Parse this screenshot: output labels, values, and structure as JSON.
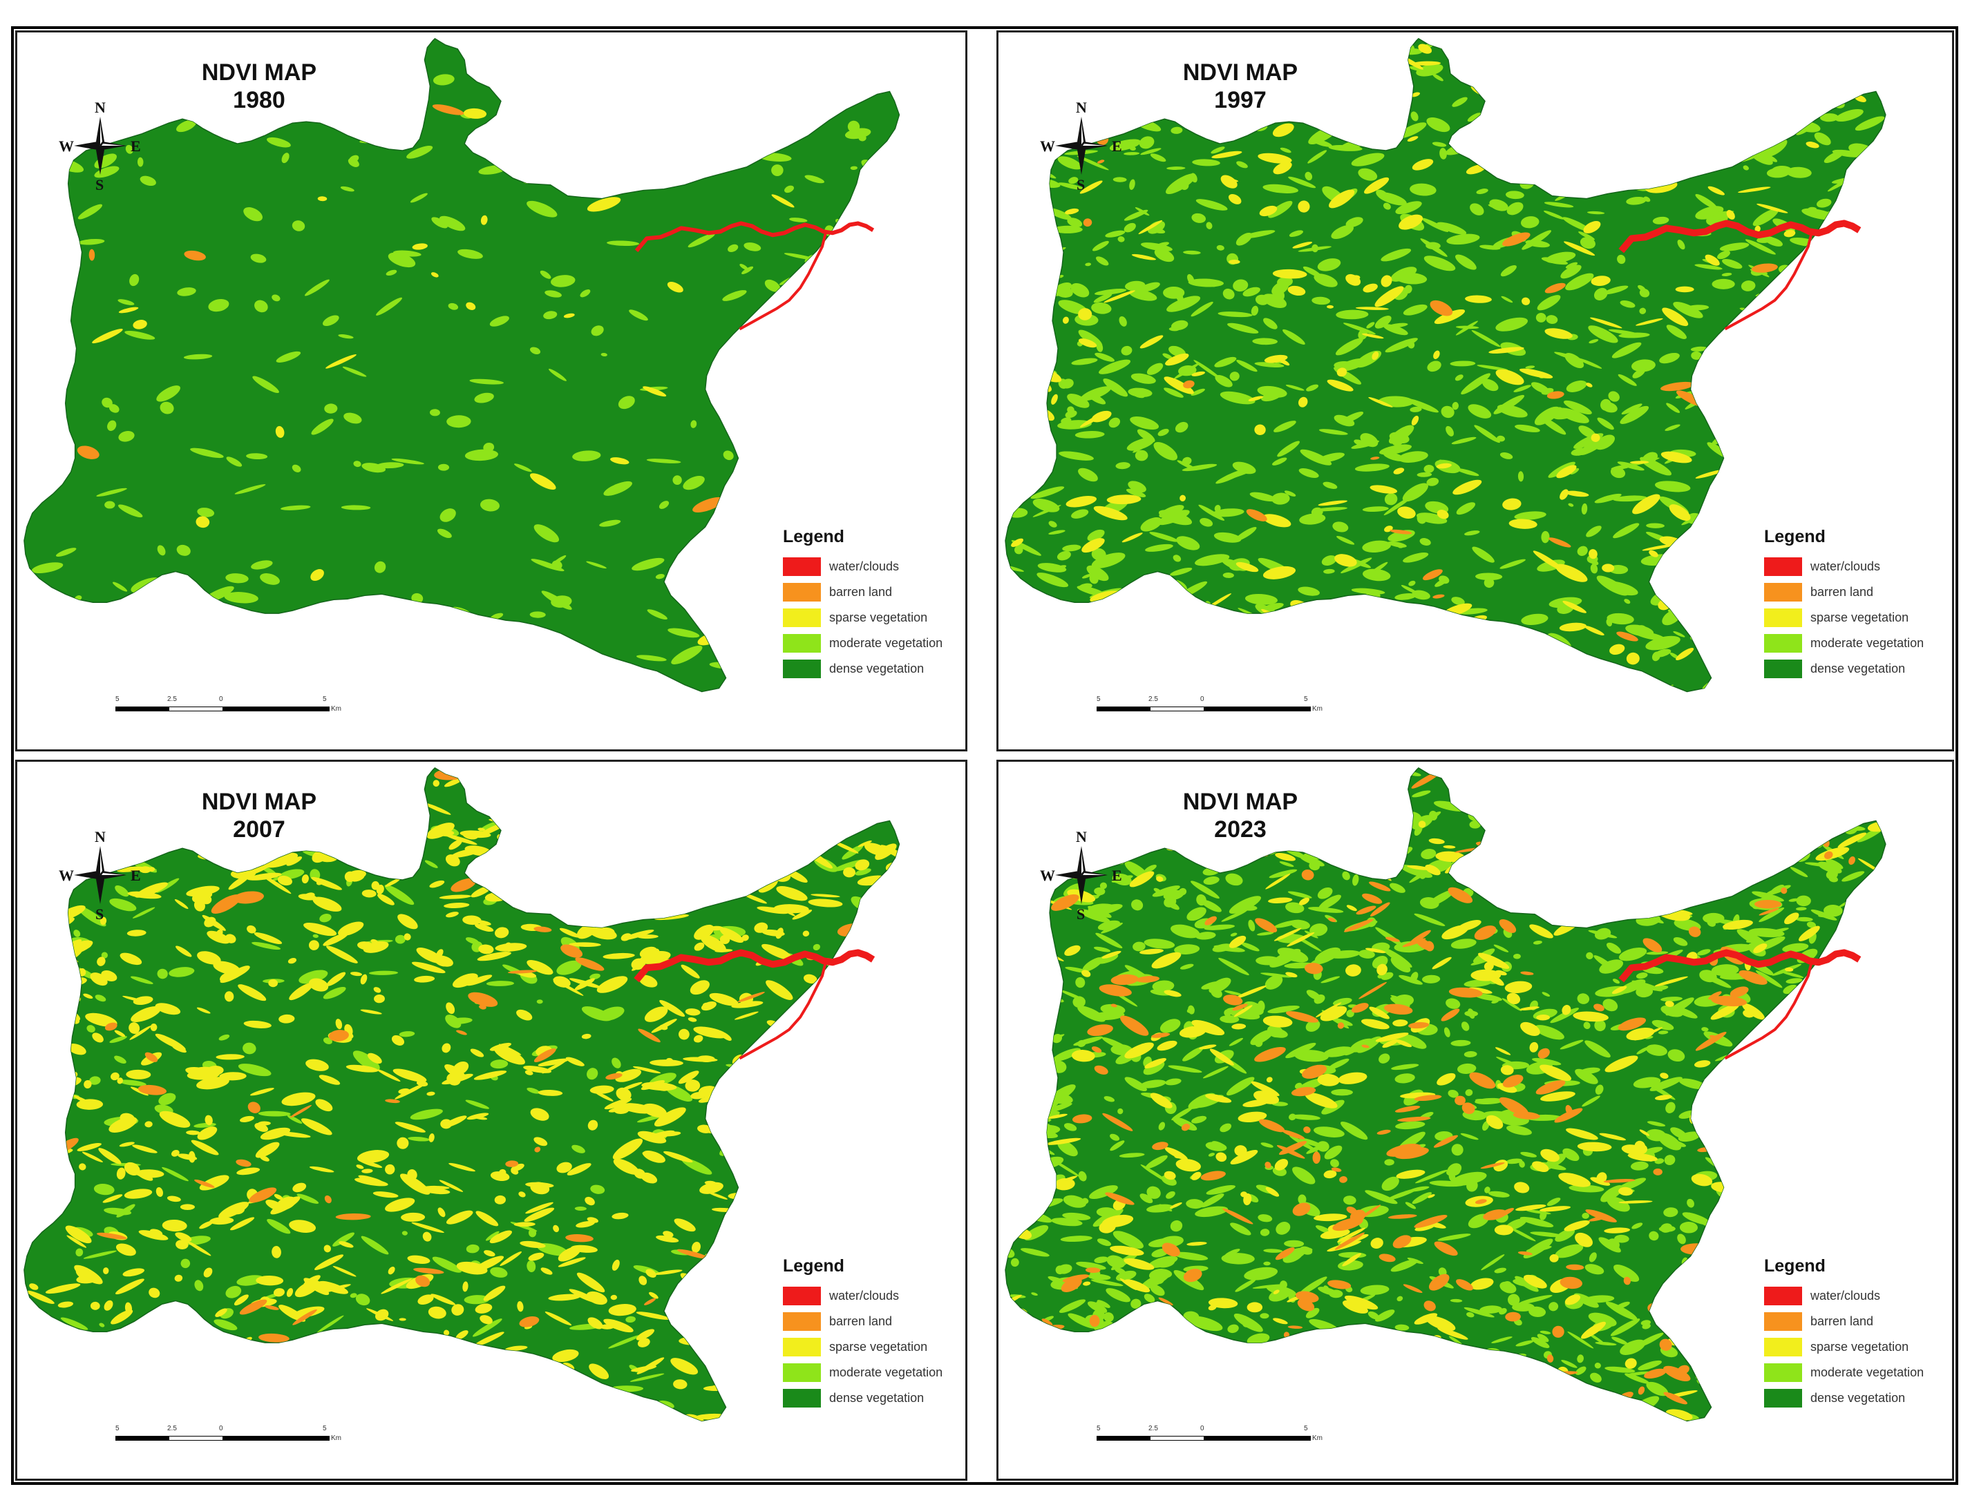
{
  "colors": {
    "water_clouds": "#ee1b1b",
    "barren_land": "#f7921e",
    "sparse_vegetation": "#f2ee1c",
    "moderate_vegetation": "#8fe41a",
    "dense_vegetation": "#1a8a1a",
    "ridge_light": "#44b81a"
  },
  "compass": {
    "north": "N",
    "south": "S",
    "east": "E",
    "west": "W"
  },
  "legend": {
    "title": "Legend",
    "items": [
      {
        "label": "water/clouds",
        "color_key": "water_clouds"
      },
      {
        "label": "barren land",
        "color_key": "barren_land"
      },
      {
        "label": "sparse vegetation",
        "color_key": "sparse_vegetation"
      },
      {
        "label": "moderate vegetation",
        "color_key": "moderate_vegetation"
      },
      {
        "label": "dense vegetation",
        "color_key": "dense_vegetation"
      }
    ]
  },
  "scale": {
    "ticks": [
      "5",
      "2.5",
      "0",
      "5"
    ],
    "unit": "Km"
  },
  "maps": [
    {
      "title_line1": "NDVI MAP",
      "year": "1980",
      "shares": {
        "water_clouds": 0.005,
        "barren_land": 0.003,
        "sparse_vegetation": 0.01,
        "moderate_vegetation": 0.08,
        "dense_vegetation": 0.902
      }
    },
    {
      "title_line1": "NDVI MAP",
      "year": "1997",
      "shares": {
        "water_clouds": 0.005,
        "barren_land": 0.01,
        "sparse_vegetation": 0.07,
        "moderate_vegetation": 0.3,
        "dense_vegetation": 0.615
      }
    },
    {
      "title_line1": "NDVI MAP",
      "year": "2007",
      "shares": {
        "water_clouds": 0.008,
        "barren_land": 0.02,
        "sparse_vegetation": 0.28,
        "moderate_vegetation": 0.07,
        "dense_vegetation": 0.622
      }
    },
    {
      "title_line1": "NDVI MAP",
      "year": "2023",
      "shares": {
        "water_clouds": 0.008,
        "barren_land": 0.08,
        "sparse_vegetation": 0.12,
        "moderate_vegetation": 0.36,
        "dense_vegetation": 0.432
      }
    }
  ]
}
